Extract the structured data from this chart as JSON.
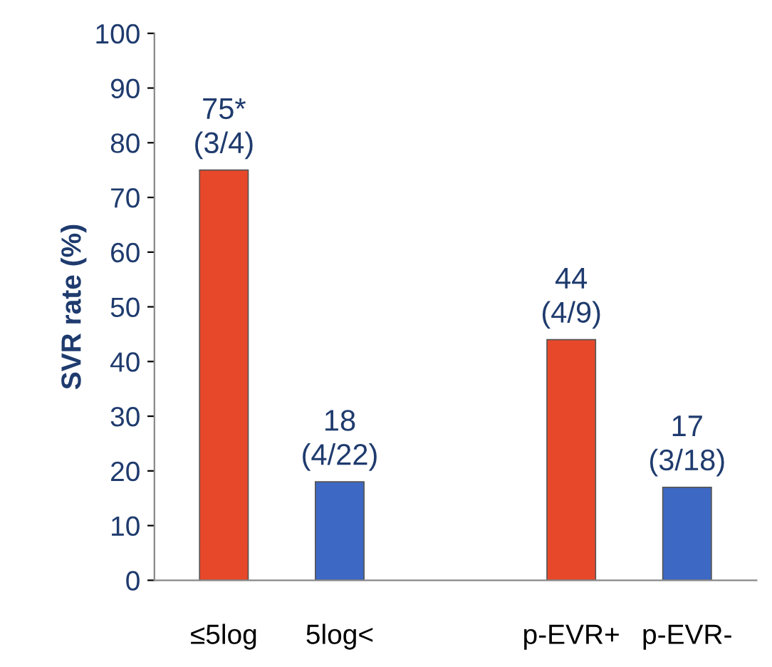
{
  "chart_data": {
    "type": "bar",
    "ylabel": "SVR rate (%)",
    "categories": [
      "≤5log",
      "5log<",
      null,
      "p-EVR+",
      "p-EVR-"
    ],
    "values": [
      75,
      18,
      null,
      44,
      17
    ],
    "colors": [
      "#e8482a",
      "#3d68c4",
      null,
      "#e8482a",
      "#3d68c4"
    ],
    "value_labels": [
      "75*\n(3/4)",
      "18\n(4/22)",
      null,
      "44\n(4/9)",
      "17\n(3/18)"
    ],
    "ylim": [
      0,
      100
    ],
    "yticks": [
      0,
      10,
      20,
      30,
      40,
      50,
      60,
      70,
      80,
      90,
      100
    ],
    "grid": false
  }
}
